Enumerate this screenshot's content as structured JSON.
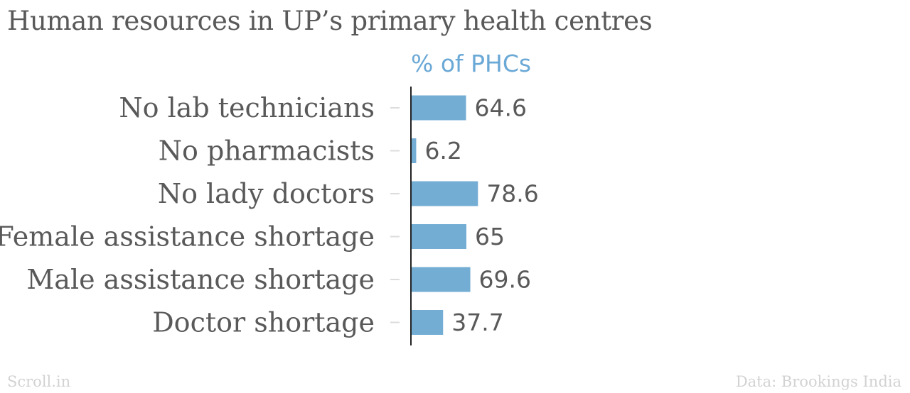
{
  "title": "Human resources in UP’s primary health centres",
  "credit": "Scroll.in",
  "source": "Data: Brookings India",
  "colors": {
    "bar": "#74add4",
    "axis_title": "#6aa8d6",
    "text": "#595959",
    "footer": "#d2d2d2",
    "axis_line": "#222222",
    "tick": "#dcdcdc"
  },
  "chart_data": {
    "type": "bar",
    "orientation": "horizontal",
    "value_axis_title": "% of PHCs",
    "categories": [
      "No lab technicians",
      "No pharmacists",
      "No lady doctors",
      "Female assistance shortage",
      "Male assistance shortage",
      "Doctor shortage"
    ],
    "values": [
      64.6,
      6.2,
      78.6,
      65,
      69.6,
      37.7
    ],
    "data_labels": [
      "64.6",
      "6.2",
      "78.6",
      "65",
      "69.6",
      "37.7"
    ],
    "xlim": [
      0,
      100
    ],
    "grid": false,
    "legend": "none"
  }
}
